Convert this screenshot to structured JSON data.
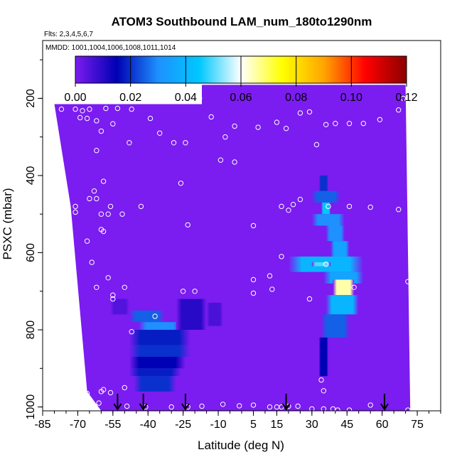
{
  "chart_data": {
    "type": "heatmap",
    "title": "ATOM3 Southbound LAM_num_180to1290nm",
    "flights_note": "Flts: 2,3,4,5,6,7",
    "dates_note": "MMDD: 1001,1004,1006,1008,1011,1014",
    "xlabel": "Latitude (deg N)",
    "ylabel": "PSXC (mbar)",
    "xlim": [
      -85,
      85
    ],
    "ylim": [
      1010,
      50
    ],
    "x_ticks": [
      -85,
      -70,
      -55,
      -40,
      -25,
      -10,
      5,
      15,
      30,
      45,
      60,
      75
    ],
    "y_ticks": [
      200,
      400,
      600,
      800,
      1000
    ],
    "colorbar": {
      "min": 0.0,
      "max": 0.12,
      "ticks": [
        "0.00",
        "0.02",
        "0.04",
        "0.06",
        "0.08",
        "0.10",
        "0.12"
      ],
      "colors": [
        "#7b1cf0",
        "#0000b4",
        "#1e90ff",
        "#00c8ff",
        "#ffffff",
        "#ffff00",
        "#ffa500",
        "#ff0000",
        "#8b0000"
      ]
    },
    "background_value": 0.0,
    "data_extent": {
      "segments": [
        {
          "x": [
            -80,
            -17
          ],
          "top_p": 215
        },
        {
          "x": [
            -17,
            70
          ],
          "top_p": 165
        }
      ],
      "left_edge": [
        [
          -80,
          215
        ],
        [
          -73,
          480
        ],
        [
          -66,
          960
        ],
        [
          -60,
          1010
        ]
      ],
      "right_edge": [
        [
          70,
          165
        ],
        [
          72,
          1010
        ]
      ]
    },
    "features": [
      {
        "lat": [
          -48,
          -33
        ],
        "p": [
          750,
          780
        ],
        "v": 0.025
      },
      {
        "lat": [
          -44,
          -26
        ],
        "p": [
          780,
          800
        ],
        "v": 0.03
      },
      {
        "lat": [
          -48,
          -22
        ],
        "p": [
          800,
          840
        ],
        "v": 0.018
      },
      {
        "lat": [
          -48,
          -22
        ],
        "p": [
          840,
          870
        ],
        "v": 0.02
      },
      {
        "lat": [
          -48,
          -24
        ],
        "p": [
          870,
          900
        ],
        "v": 0.015
      },
      {
        "lat": [
          -48,
          -26
        ],
        "p": [
          900,
          920
        ],
        "v": 0.018
      },
      {
        "lat": [
          -46,
          -28
        ],
        "p": [
          920,
          960
        ],
        "v": 0.02
      },
      {
        "lat": [
          -28,
          -15
        ],
        "p": [
          720,
          800
        ],
        "v": 0.01
      },
      {
        "lat": [
          -15,
          -8
        ],
        "p": [
          730,
          790
        ],
        "v": 0.006
      },
      {
        "lat": [
          33,
          37
        ],
        "p": [
          400,
          440
        ],
        "v": 0.02
      },
      {
        "lat": [
          30,
          42
        ],
        "p": [
          440,
          470
        ],
        "v": 0.025
      },
      {
        "lat": [
          34,
          38
        ],
        "p": [
          470,
          500
        ],
        "v": 0.045
      },
      {
        "lat": [
          30,
          44
        ],
        "p": [
          500,
          530
        ],
        "v": 0.03
      },
      {
        "lat": [
          36,
          44
        ],
        "p": [
          530,
          570
        ],
        "v": 0.03
      },
      {
        "lat": [
          38,
          46
        ],
        "p": [
          570,
          610
        ],
        "v": 0.035
      },
      {
        "lat": [
          20,
          52
        ],
        "p": [
          610,
          650
        ],
        "v": 0.04
      },
      {
        "lat": [
          30,
          38
        ],
        "p": [
          625,
          635
        ],
        "v": 0.05
      },
      {
        "lat": [
          35,
          52
        ],
        "p": [
          650,
          680
        ],
        "v": 0.035
      },
      {
        "lat": [
          39,
          48
        ],
        "p": [
          670,
          710
        ],
        "v": 0.065
      },
      {
        "lat": [
          36,
          50
        ],
        "p": [
          710,
          760
        ],
        "v": 0.04
      },
      {
        "lat": [
          34,
          46
        ],
        "p": [
          760,
          820
        ],
        "v": 0.025
      },
      {
        "lat": [
          33,
          37
        ],
        "p": [
          820,
          920
        ],
        "v": 0.015
      },
      {
        "lat": [
          -56,
          -48
        ],
        "p": [
          720,
          760
        ],
        "v": 0.005
      }
    ],
    "observation_points": [
      [
        -83,
        225
      ],
      [
        -77,
        228
      ],
      [
        -71,
        228
      ],
      [
        -68,
        232
      ],
      [
        -69,
        250
      ],
      [
        -65,
        228
      ],
      [
        -66,
        252
      ],
      [
        -62,
        258
      ],
      [
        -58,
        226
      ],
      [
        -53,
        226
      ],
      [
        -47,
        228
      ],
      [
        -39,
        252
      ],
      [
        -60,
        285
      ],
      [
        -55,
        266
      ],
      [
        -62,
        335
      ],
      [
        -48,
        315
      ],
      [
        -35,
        290
      ],
      [
        -29,
        315
      ],
      [
        -24,
        315
      ],
      [
        -18,
        200
      ],
      [
        -13,
        248
      ],
      [
        -7,
        300
      ],
      [
        -3,
        272
      ],
      [
        -9,
        360
      ],
      [
        -3,
        365
      ],
      [
        7,
        275
      ],
      [
        15,
        262
      ],
      [
        19,
        278
      ],
      [
        25,
        238
      ],
      [
        29,
        235
      ],
      [
        32,
        320
      ],
      [
        36,
        268
      ],
      [
        40,
        265
      ],
      [
        46,
        265
      ],
      [
        52,
        265
      ],
      [
        59,
        255
      ],
      [
        67,
        230
      ],
      [
        69,
        200
      ],
      [
        -59,
        415
      ],
      [
        -63,
        440
      ],
      [
        -65,
        460
      ],
      [
        -62,
        460
      ],
      [
        -71,
        480
      ],
      [
        -71,
        495
      ],
      [
        -56,
        480
      ],
      [
        -43,
        480
      ],
      [
        -51,
        500
      ],
      [
        -60,
        500
      ],
      [
        -59,
        545
      ],
      [
        -60,
        540
      ],
      [
        -57,
        500
      ],
      [
        -26,
        420
      ],
      [
        -23,
        528
      ],
      [
        5,
        530
      ],
      [
        17,
        480
      ],
      [
        20,
        490
      ],
      [
        22,
        475
      ],
      [
        25,
        462
      ],
      [
        37,
        480
      ],
      [
        46,
        480
      ],
      [
        55,
        482
      ],
      [
        67,
        488
      ],
      [
        -66,
        570
      ],
      [
        -64,
        625
      ],
      [
        -57,
        665
      ],
      [
        -55,
        710
      ],
      [
        -55,
        720
      ],
      [
        -50,
        690
      ],
      [
        -62,
        690
      ],
      [
        -37,
        765
      ],
      [
        -47,
        805
      ],
      [
        -25,
        700
      ],
      [
        -20,
        700
      ],
      [
        5,
        670
      ],
      [
        5,
        705
      ],
      [
        17,
        610
      ],
      [
        12,
        660
      ],
      [
        13,
        695
      ],
      [
        29,
        720
      ],
      [
        36,
        630
      ],
      [
        48,
        690
      ],
      [
        71,
        675
      ],
      [
        34,
        930
      ],
      [
        -69,
        950
      ],
      [
        -59,
        955
      ],
      [
        -56,
        963
      ],
      [
        -60,
        960
      ],
      [
        -50,
        950
      ],
      [
        -66,
        965
      ],
      [
        -61,
        990
      ],
      [
        -49,
        998
      ],
      [
        -41,
        1000
      ],
      [
        -30,
        1000
      ],
      [
        -23,
        1000
      ],
      [
        -17,
        998
      ],
      [
        -8,
        993
      ],
      [
        -1,
        997
      ],
      [
        5,
        995
      ],
      [
        12,
        1000
      ],
      [
        15,
        1000
      ],
      [
        17,
        1000
      ],
      [
        20,
        998
      ],
      [
        30,
        1005
      ],
      [
        35,
        1005
      ],
      [
        39,
        1005
      ],
      [
        41,
        1008
      ],
      [
        46,
        1008
      ],
      [
        55,
        995
      ],
      [
        71,
        1008
      ],
      [
        24,
        998
      ],
      [
        35,
        958
      ]
    ],
    "flight_arrows": [
      -53,
      -42,
      -24,
      19,
      61
    ]
  }
}
